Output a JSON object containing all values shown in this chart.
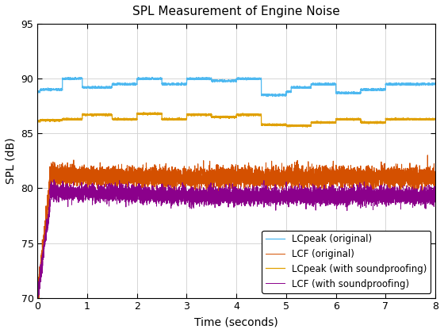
{
  "title": "SPL Measurement of Engine Noise",
  "xlabel": "Time (seconds)",
  "ylabel": "SPL (dB)",
  "xlim": [
    0,
    8
  ],
  "ylim": [
    70,
    95
  ],
  "yticks": [
    70,
    75,
    80,
    85,
    90,
    95
  ],
  "xticks": [
    0,
    1,
    2,
    3,
    4,
    5,
    6,
    7,
    8
  ],
  "legend": [
    "LCpeak (original)",
    "LCF (original)",
    "LCpeak (with soundproofing)",
    "LCF (with soundproofing)"
  ],
  "colors": {
    "LCpeak_orig": "#4db8f0",
    "LCF_orig": "#d45000",
    "LCpeak_sound": "#e0a000",
    "LCF_sound": "#8B008B"
  },
  "seed": 42,
  "n_points": 8000,
  "duration": 8.0
}
